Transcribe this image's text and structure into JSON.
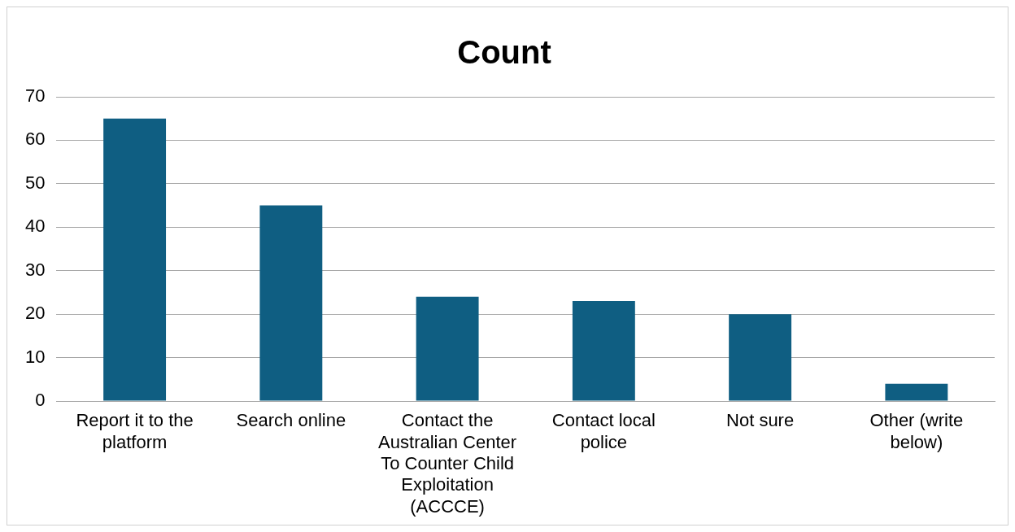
{
  "chart_data": {
    "type": "bar",
    "title": "Count",
    "categories": [
      "Report it to the platform",
      "Search online",
      "Contact the Australian Center To Counter Child Exploitation (ACCCE)",
      "Contact local police",
      "Not sure",
      "Other (write below)"
    ],
    "values": [
      65,
      45,
      24,
      23,
      20,
      4
    ],
    "color": "#0f5e82",
    "ylim": [
      0,
      70
    ],
    "yticks": [
      0,
      10,
      20,
      30,
      40,
      50,
      60,
      70
    ],
    "grid": "y",
    "legend": false
  }
}
